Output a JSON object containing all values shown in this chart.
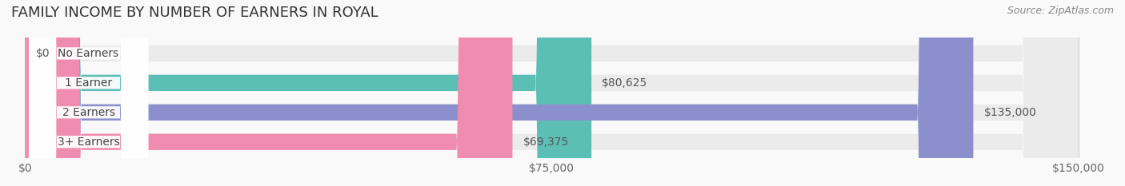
{
  "title": "FAMILY INCOME BY NUMBER OF EARNERS IN ROYAL",
  "source": "Source: ZipAtlas.com",
  "categories": [
    "No Earners",
    "1 Earner",
    "2 Earners",
    "3+ Earners"
  ],
  "values": [
    0,
    80625,
    135000,
    69375
  ],
  "bar_colors": [
    "#c9a8d4",
    "#5bbfb5",
    "#8b8fcc",
    "#f08cb0"
  ],
  "bar_bg_color": "#eeeeee",
  "value_labels": [
    "$0",
    "$80,625",
    "$135,000",
    "$69,375"
  ],
  "x_ticks": [
    0,
    75000,
    150000
  ],
  "x_tick_labels": [
    "$0",
    "$75,000",
    "$150,000"
  ],
  "x_max": 150000,
  "label_fontsize": 10,
  "title_fontsize": 13,
  "source_fontsize": 9,
  "background_color": "#f9f9f9",
  "bar_bg_color2": "#f0f0f0"
}
